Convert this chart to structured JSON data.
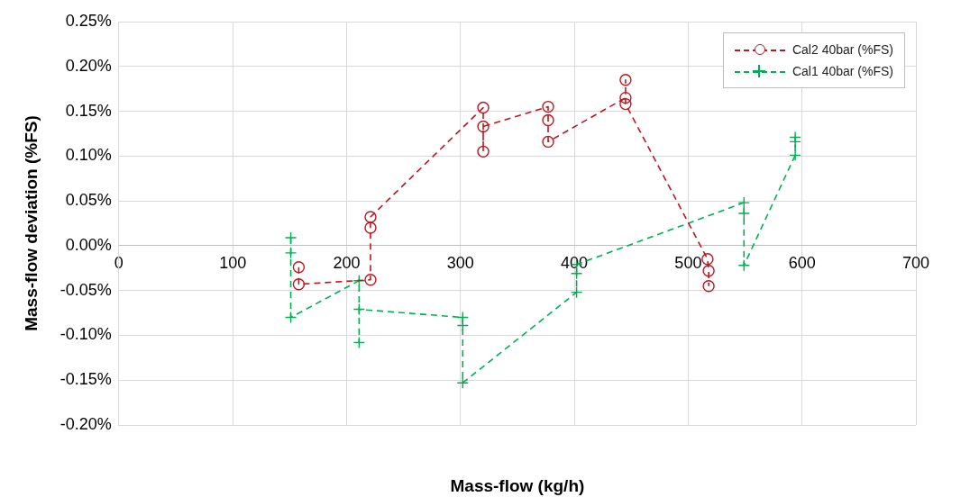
{
  "chart_data": {
    "type": "line",
    "xlabel": "Mass-flow (kg/h)",
    "ylabel": "Mass-flow deviation (%FS)",
    "xlim": [
      0,
      700
    ],
    "xticks": [
      0,
      100,
      200,
      300,
      400,
      500,
      600,
      700
    ],
    "ylim": [
      -0.2,
      0.25
    ],
    "yticks": [
      {
        "value": -0.2,
        "label": "-0.20%"
      },
      {
        "value": -0.15,
        "label": "-0.15%"
      },
      {
        "value": -0.1,
        "label": "-0.10%"
      },
      {
        "value": -0.05,
        "label": "-0.05%"
      },
      {
        "value": 0,
        "label": "0.00%"
      },
      {
        "value": 0.05,
        "label": "0.05%"
      },
      {
        "value": 0.1,
        "label": "0.10%"
      },
      {
        "value": 0.15,
        "label": "0.15%"
      },
      {
        "value": 0.2,
        "label": "0.20%"
      },
      {
        "value": 0.25,
        "label": "0.25%"
      }
    ],
    "grid": true,
    "legend": "top right",
    "line_style": "dashed",
    "series": [
      {
        "name": "Cal2 40bar (%FS)",
        "color": "#c0151f",
        "marker": "circle",
        "x": [
          158,
          158,
          221,
          221,
          221,
          320,
          320,
          320,
          377,
          377,
          377,
          445,
          445,
          445,
          517,
          518,
          518
        ],
        "values": [
          -0.024,
          -0.043,
          -0.038,
          0.02,
          0.032,
          0.154,
          0.105,
          0.133,
          0.155,
          0.14,
          0.116,
          0.165,
          0.185,
          0.158,
          -0.015,
          -0.028,
          -0.045
        ]
      },
      {
        "name": "Cal1 40bar (%FS)",
        "color": "#00b050",
        "marker": "cross",
        "x": [
          151,
          151,
          151,
          211,
          211,
          211,
          302,
          302,
          302,
          402,
          402,
          402,
          549,
          549,
          549,
          594,
          594,
          594
        ],
        "values": [
          0.009,
          -0.008,
          -0.08,
          -0.039,
          -0.108,
          -0.071,
          -0.08,
          -0.089,
          -0.153,
          -0.052,
          -0.031,
          -0.021,
          0.048,
          0.036,
          -0.022,
          0.101,
          0.116,
          0.121
        ]
      }
    ]
  }
}
